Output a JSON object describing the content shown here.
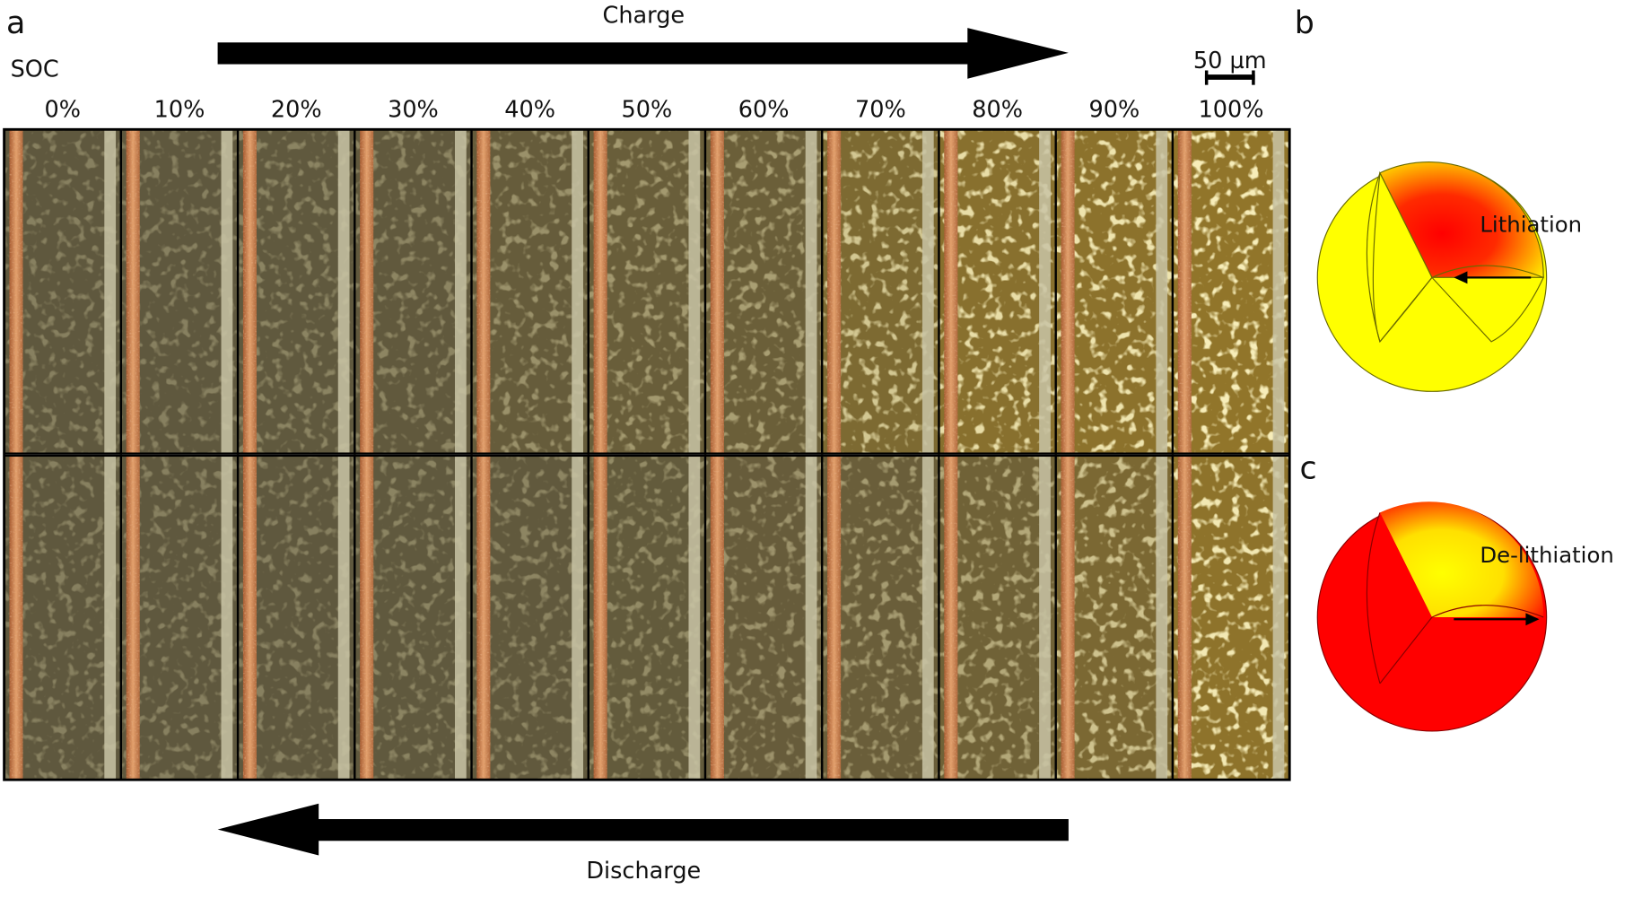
{
  "figure": {
    "panel_labels": {
      "a": "a",
      "b": "b",
      "c": "c"
    },
    "soc_label": "SOC",
    "charge_label": "Charge",
    "discharge_label": "Discharge",
    "scale_bar_label": "50 µm",
    "soc_values": [
      "0%",
      "10%",
      "20%",
      "30%",
      "40%",
      "50%",
      "60%",
      "70%",
      "80%",
      "90%",
      "100%"
    ]
  },
  "panel_b": {
    "label": "Lithiation"
  },
  "panel_c": {
    "label": "De-lithiation"
  },
  "colors": {
    "yellow": "#ffff00",
    "red": "#ff0000",
    "frame": "#000000"
  },
  "micrograph_tone": {
    "charge_row": [
      0.0,
      0.0,
      0.02,
      0.04,
      0.12,
      0.18,
      0.22,
      0.55,
      0.75,
      0.82,
      0.9
    ],
    "discharge_row": [
      0.0,
      0.0,
      0.0,
      0.02,
      0.04,
      0.08,
      0.14,
      0.2,
      0.3,
      0.5,
      0.85
    ]
  }
}
